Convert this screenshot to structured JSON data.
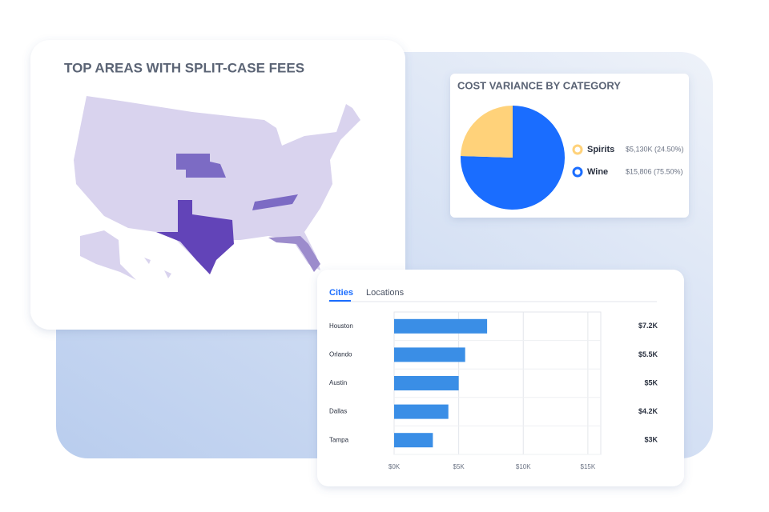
{
  "chart_data": [
    {
      "type": "map",
      "title": "TOP AREAS WITH SPLIT-CASE FEES"
    },
    {
      "type": "pie",
      "title": "COST VARIANCE BY CATEGORY",
      "categories": [
        "Spirits",
        "Wine"
      ],
      "values": [
        24.5,
        75.5
      ],
      "value_labels": [
        "$5,130K (24.50%)",
        "$15,806 (75.50%)"
      ],
      "colors": [
        "#ffd27a",
        "#1a6dff"
      ]
    },
    {
      "type": "hbar",
      "tabs": [
        "Cities",
        "Locations"
      ],
      "categories": [
        "Houston",
        "Orlando",
        "Austin",
        "Dallas",
        "Tampa"
      ],
      "values": [
        7.2,
        5.5,
        5,
        4.2,
        3
      ],
      "value_labels": [
        "$7.2K",
        "$5.5K",
        "$5K",
        "$4.2K",
        "$3K"
      ],
      "color": "#3a8ee6",
      "xlim": [
        0,
        16
      ],
      "xticks": [
        {
          "value": 0,
          "label": "$0K"
        },
        {
          "value": 5,
          "label": "$5K"
        },
        {
          "value": 10,
          "label": "$10K"
        },
        {
          "value": 15,
          "label": "$15K"
        }
      ],
      "grid": true
    }
  ]
}
